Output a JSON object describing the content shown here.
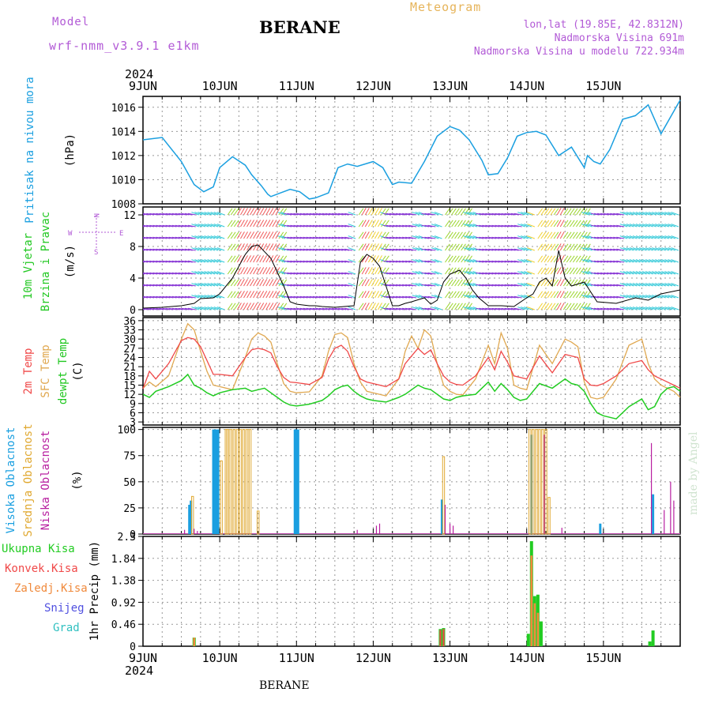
{
  "header": {
    "model_label": "Model",
    "model_name": "wrf-nmm_v3.9.1 e1km",
    "station": "BERANE",
    "title": "Meteogram",
    "lonlat": "lon,lat (19.85E, 42.8312N)",
    "elevation": "Nadmorska Visina 691m",
    "model_elevation": "Nadmorska Visina u modelu 722.934m"
  },
  "footer_station": "BERANE",
  "credit": "made by Angel",
  "colors": {
    "pressure": "#1a9fe0",
    "temp2m": "#f04848",
    "sfc": "#e0a850",
    "dew": "#22cc22",
    "visoka": "#1a9fe0",
    "srednja": "#e0a830",
    "niska": "#b81fa0",
    "ukupna": "#22cc22",
    "konvek": "#f04848",
    "zaledj": "#f08a3c",
    "snijeg": "#5050e0",
    "grad": "#30c0c0",
    "purple": "#b25ad6"
  },
  "x_axis": {
    "year": "2024",
    "tick_labels": [
      "9JUN",
      "10JUN",
      "11JUN",
      "12JUN",
      "13JUN",
      "14JUN",
      "15JUN"
    ]
  },
  "panels": {
    "pressure": {
      "ylabel_main": "Pritisak na nivou mora",
      "unit": "(hPa)"
    },
    "wind": {
      "ylabel_1": "10m Vjetar",
      "ylabel_2": "Brzina i Pravac",
      "unit": "(m/s)",
      "compass": [
        "N",
        "E",
        "S",
        "W"
      ]
    },
    "temp": {
      "ylabel_1": "2m Temp",
      "ylabel_2": "SFC Temp",
      "ylabel_3": "dewpt Temp",
      "unit": "(C)"
    },
    "cloud": {
      "ylabel_1": "Visoka Oblacnost",
      "ylabel_2": "Srednja Oblacnost",
      "ylabel_3": "Niska Oblacnost",
      "unit": "(%)"
    },
    "precip": {
      "legend": [
        "Ukupna Kisa",
        "Konvek.Kisa",
        "Zaledj.Kisa",
        "Snijeg",
        "Grad"
      ],
      "ylabel": "1hr Precip (mm)"
    }
  },
  "chart_data": [
    {
      "type": "line",
      "title": "",
      "ylabel": "Pritisak na nivou mora (hPa)",
      "ylim": [
        1008,
        1016.9
      ],
      "yticks": [
        1008,
        1010,
        1012,
        1014,
        1016
      ],
      "x_unit": "hours since 9JUN 00Z",
      "series": [
        {
          "name": "Pritisak na nivou mora",
          "x": [
            0,
            6,
            12,
            16,
            19,
            22,
            24,
            28,
            32,
            34,
            37,
            39,
            40,
            43,
            46,
            49,
            52,
            54,
            58,
            61,
            64,
            67,
            72,
            75,
            78,
            80,
            84,
            88,
            92,
            96,
            99,
            102,
            106,
            108,
            111,
            114,
            117,
            120,
            123,
            126,
            130,
            134,
            138,
            139,
            141,
            143,
            146,
            150,
            154,
            158,
            162,
            168
          ],
          "values": [
            1013.3,
            1013.5,
            1011.5,
            1009.6,
            1009.0,
            1009.4,
            1011.0,
            1011.9,
            1011.2,
            1010.4,
            1009.5,
            1008.8,
            1008.6,
            1008.9,
            1009.2,
            1009.0,
            1008.4,
            1008.5,
            1008.9,
            1011.0,
            1011.3,
            1011.1,
            1011.5,
            1011.0,
            1009.6,
            1009.8,
            1009.7,
            1011.5,
            1013.6,
            1014.4,
            1014.1,
            1013.3,
            1011.6,
            1010.4,
            1010.5,
            1011.8,
            1013.6,
            1013.9,
            1014.0,
            1013.7,
            1012.0,
            1012.7,
            1011.0,
            1012.0,
            1011.5,
            1011.3,
            1012.5,
            1015.0,
            1015.3,
            1016.2,
            1013.8,
            1016.6
          ]
        }
      ]
    },
    {
      "type": "line",
      "title": "",
      "ylabel": "10m Vjetar Brzina i Pravac (m/s)",
      "ylim": [
        -0.8,
        13
      ],
      "yticks": [
        0,
        4,
        8,
        12
      ],
      "series": [
        {
          "name": "10m Vjetar",
          "x": [
            0,
            6,
            12,
            16,
            18,
            22,
            24,
            28,
            32,
            34,
            36,
            40,
            44,
            46,
            48,
            52,
            54,
            56,
            60,
            66,
            68,
            70,
            72,
            74,
            76,
            78,
            80,
            82,
            84,
            88,
            90,
            92,
            94,
            96,
            99,
            101,
            103,
            105,
            108,
            112,
            116,
            120,
            122,
            124,
            126,
            128,
            130,
            132,
            134,
            138,
            142,
            148,
            154,
            158,
            162,
            168
          ],
          "values": [
            0.2,
            0.3,
            0.5,
            0.8,
            1.4,
            1.5,
            2.0,
            4.0,
            7.0,
            8.0,
            8.2,
            6.5,
            3.0,
            1.0,
            0.7,
            0.5,
            0.5,
            0.4,
            0.3,
            0.5,
            6.0,
            7.0,
            6.5,
            5.5,
            3.0,
            0.5,
            0.5,
            0.8,
            1.0,
            1.5,
            0.7,
            1.2,
            3.5,
            4.5,
            5.0,
            4.0,
            2.5,
            1.5,
            0.5,
            0.5,
            0.4,
            1.5,
            2.0,
            3.5,
            4.0,
            3.0,
            7.5,
            4.0,
            3.0,
            3.5,
            1.0,
            0.8,
            1.5,
            1.2,
            2.0,
            2.5
          ]
        }
      ]
    },
    {
      "type": "line",
      "title": "",
      "ylabel": "Temp (C)",
      "ylim": [
        2,
        37
      ],
      "yticks": [
        3,
        6,
        9,
        12,
        15,
        18,
        21,
        24,
        27,
        30,
        33,
        36
      ],
      "series": [
        {
          "name": "2m Temp",
          "x": [
            0,
            2,
            4,
            8,
            12,
            14,
            16,
            18,
            20,
            22,
            24,
            28,
            32,
            34,
            36,
            38,
            40,
            42,
            44,
            46,
            48,
            52,
            56,
            58,
            60,
            62,
            64,
            66,
            68,
            70,
            72,
            76,
            80,
            82,
            84,
            86,
            88,
            90,
            92,
            94,
            96,
            98,
            100,
            104,
            108,
            110,
            112,
            114,
            116,
            118,
            120,
            124,
            128,
            132,
            134,
            136,
            138,
            140,
            142,
            144,
            148,
            152,
            156,
            158,
            160,
            162,
            164,
            166,
            168
          ],
          "values": [
            13.8,
            19.5,
            17.0,
            22.0,
            29.5,
            30.5,
            30.0,
            27.5,
            23.0,
            18.5,
            18.5,
            18.0,
            24.0,
            26.5,
            27.0,
            26.5,
            25.5,
            21.0,
            17.5,
            16.0,
            15.8,
            15.2,
            17.5,
            23.5,
            27.0,
            28.0,
            26.0,
            21.0,
            17.0,
            16.0,
            15.5,
            14.5,
            17.0,
            22.0,
            24.5,
            27.0,
            25.0,
            26.5,
            22.0,
            18.0,
            16.0,
            15.2,
            15.0,
            18.0,
            24.0,
            20.0,
            26.0,
            22.5,
            18.0,
            17.5,
            17.0,
            24.5,
            19.0,
            25.0,
            24.5,
            24.0,
            17.0,
            15.0,
            14.8,
            15.5,
            18.0,
            22.0,
            23.0,
            20.0,
            18.0,
            17.0,
            16.0,
            15.0,
            14.0
          ]
        },
        {
          "name": "SFC Temp",
          "x": [
            0,
            2,
            4,
            8,
            12,
            14,
            16,
            18,
            20,
            22,
            24,
            28,
            32,
            34,
            36,
            38,
            40,
            42,
            44,
            46,
            48,
            52,
            56,
            58,
            60,
            62,
            64,
            66,
            68,
            70,
            72,
            76,
            80,
            82,
            84,
            86,
            88,
            90,
            92,
            94,
            96,
            98,
            100,
            104,
            108,
            110,
            112,
            114,
            116,
            118,
            120,
            124,
            128,
            132,
            134,
            136,
            138,
            140,
            142,
            144,
            148,
            152,
            156,
            158,
            160,
            162,
            164,
            166,
            168
          ],
          "values": [
            14.0,
            16.0,
            14.5,
            18.0,
            30.0,
            35.0,
            33.0,
            26.0,
            19.5,
            15.0,
            14.5,
            13.5,
            24.0,
            30.0,
            32.0,
            31.0,
            29.0,
            22.0,
            15.5,
            13.0,
            12.5,
            12.8,
            18.0,
            26.0,
            31.5,
            32.0,
            30.5,
            22.0,
            16.0,
            13.0,
            12.5,
            11.5,
            17.0,
            26.0,
            31.0,
            27.0,
            33.0,
            31.0,
            22.0,
            15.0,
            13.0,
            12.0,
            11.8,
            17.0,
            28.0,
            22.0,
            32.0,
            27.0,
            15.0,
            14.0,
            13.5,
            28.0,
            22.0,
            30.0,
            29.0,
            27.5,
            16.0,
            11.0,
            10.5,
            11.0,
            17.0,
            28.0,
            30.0,
            22.0,
            17.0,
            15.0,
            14.0,
            13.0,
            11.0
          ]
        },
        {
          "name": "dewpt Temp",
          "x": [
            0,
            2,
            4,
            8,
            12,
            14,
            16,
            18,
            20,
            22,
            24,
            28,
            32,
            34,
            36,
            38,
            40,
            42,
            44,
            46,
            48,
            52,
            56,
            58,
            60,
            62,
            64,
            66,
            68,
            70,
            72,
            76,
            80,
            82,
            84,
            86,
            88,
            90,
            92,
            94,
            96,
            98,
            100,
            104,
            108,
            110,
            112,
            114,
            116,
            118,
            120,
            124,
            128,
            132,
            134,
            136,
            138,
            140,
            142,
            144,
            148,
            152,
            156,
            158,
            160,
            162,
            164,
            166,
            168
          ],
          "values": [
            12.0,
            11.0,
            13.0,
            14.5,
            16.5,
            18.5,
            15.0,
            14.0,
            12.5,
            11.5,
            12.5,
            13.5,
            14.0,
            13.0,
            13.5,
            14.0,
            12.5,
            11.0,
            9.5,
            8.5,
            8.2,
            8.8,
            10.0,
            11.5,
            13.5,
            14.5,
            15.0,
            13.0,
            11.5,
            10.5,
            10.0,
            9.5,
            11.0,
            12.0,
            13.5,
            15.0,
            14.0,
            13.5,
            12.0,
            10.5,
            10.0,
            11.0,
            11.5,
            12.0,
            16.0,
            13.0,
            15.5,
            13.5,
            11.0,
            10.0,
            10.5,
            15.5,
            14.0,
            17.0,
            15.5,
            15.0,
            13.0,
            9.0,
            6.0,
            5.0,
            4.0,
            8.0,
            10.5,
            7.0,
            8.0,
            12.0,
            14.0,
            14.5,
            13.0
          ]
        }
      ]
    },
    {
      "type": "bar",
      "title": "",
      "ylabel": "Oblacnost (%)",
      "ylim": [
        0,
        102
      ],
      "yticks": [
        0,
        25,
        50,
        75,
        100
      ],
      "series": [
        {
          "name": "Visoka Oblacnost",
          "x": [
            14.5,
            15.0,
            22.0,
            22.5,
            23.0,
            23.5,
            47.5,
            48.0,
            48.5,
            93.5,
            121.5,
            143.0,
            159.5
          ],
          "values": [
            28,
            32,
            100,
            100,
            100,
            100,
            100,
            100,
            100,
            33,
            95,
            10,
            38
          ]
        },
        {
          "name": "Srednja Oblacnost",
          "x": [
            15.5,
            24.5,
            26.0,
            26.5,
            27.5,
            28.5,
            29.5,
            30.5,
            31.5,
            32.5,
            33.5,
            36.0,
            94.0,
            121.0,
            122.0,
            123.0,
            124.0,
            125.0,
            126.0,
            127.0
          ],
          "values": [
            36,
            70,
            100,
            100,
            100,
            100,
            100,
            100,
            100,
            100,
            100,
            22,
            74,
            100,
            100,
            100,
            100,
            100,
            100,
            35
          ]
        },
        {
          "name": "Niska Oblacnost",
          "x": [
            13.0,
            16.0,
            17.0,
            67.0,
            73.0,
            74.0,
            94.5,
            96.0,
            97.0,
            125.5,
            131.0,
            159.0,
            163.0,
            165.0,
            166.0
          ],
          "values": [
            4,
            5,
            3,
            4,
            8,
            10,
            28,
            10,
            8,
            95,
            6,
            87,
            23,
            50,
            32
          ]
        }
      ]
    },
    {
      "type": "bar",
      "title": "",
      "ylabel": "1hr Precip (mm)",
      "ylim": [
        0,
        2.3
      ],
      "yticks": [
        0,
        0.46,
        0.92,
        1.38,
        1.84,
        2.3
      ],
      "series": [
        {
          "name": "Ukupna Kisa",
          "x": [
            16.0,
            93.0,
            94.0,
            120.5,
            121.5,
            122.5,
            123.5,
            124.5,
            158.5,
            159.5
          ],
          "values": [
            0.18,
            0.36,
            0.38,
            0.26,
            2.2,
            1.05,
            1.08,
            0.52,
            0.1,
            0.33
          ]
        },
        {
          "name": "Konvek.Kisa",
          "x": [
            16.0,
            93.0,
            94.0,
            121.5
          ],
          "values": [
            0.15,
            0.34,
            0.36,
            0.3
          ]
        },
        {
          "name": "Zaledj.Kisa",
          "x": [
            16.0,
            121.5,
            122.5,
            123.5
          ],
          "values": [
            0.18,
            1.9,
            0.9,
            0.7
          ]
        }
      ]
    }
  ]
}
